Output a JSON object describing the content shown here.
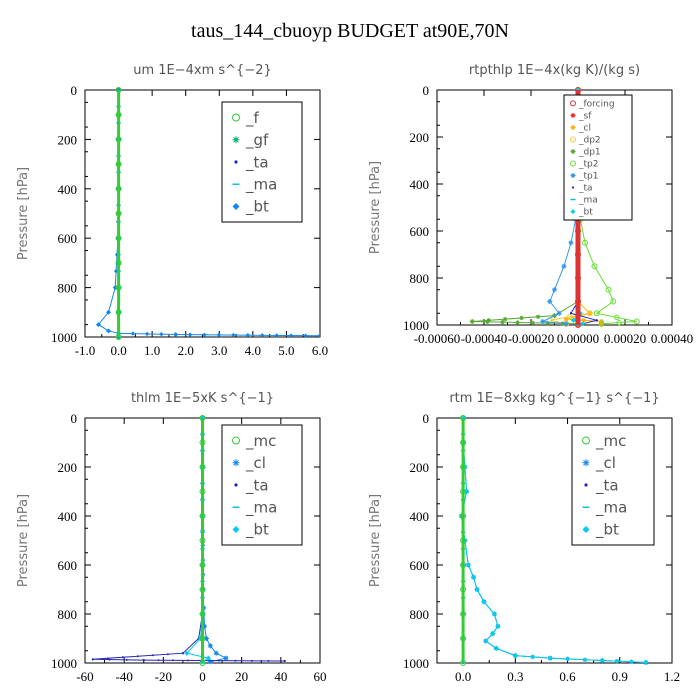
{
  "title": "taus_144_cbuoyp  BUDGET at90E,70N",
  "chart_data": [
    {
      "type": "line",
      "title": "um  1E−4xm s^{−2}",
      "ylabel": "Pressure [hPa]",
      "xlim": [
        -1.0,
        6.0
      ],
      "ylim": [
        1000,
        0
      ],
      "xticks": [
        -1.0,
        0.0,
        1.0,
        2.0,
        3.0,
        4.0,
        5.0,
        6.0
      ],
      "xtick_labels": [
        "-1.0",
        "0.0",
        "1.0",
        "2.0",
        "3.0",
        "4.0",
        "5.0",
        "6.0"
      ],
      "yticks": [
        0,
        200,
        400,
        600,
        800,
        1000
      ],
      "ytick_labels": [
        "0",
        "200",
        "400",
        "600",
        "800",
        "1000"
      ],
      "legend_position": "top-right",
      "legend_font": 15,
      "series": [
        {
          "name": "_f",
          "color": "#33cc33",
          "marker": "circle",
          "x": [
            0,
            0,
            0,
            0,
            0,
            0,
            0,
            0,
            0,
            0,
            0
          ],
          "y": [
            0,
            100,
            200,
            300,
            400,
            500,
            600,
            700,
            800,
            900,
            1000
          ]
        },
        {
          "name": "_gf",
          "color": "#00aa77",
          "marker": "star",
          "x": [
            0,
            0,
            0,
            0,
            0,
            0,
            0,
            0,
            0,
            0,
            0
          ],
          "y": [
            0,
            100,
            200,
            300,
            400,
            500,
            600,
            700,
            800,
            900,
            1000
          ]
        },
        {
          "name": "_ta",
          "color": "#2222bb",
          "marker": "dot",
          "x": [
            0,
            0,
            0,
            0,
            0,
            0,
            0,
            0
          ],
          "y": [
            0,
            200,
            400,
            600,
            800,
            950,
            985,
            1000
          ]
        },
        {
          "name": "_ma",
          "color": "#00bbdd",
          "marker": "dash",
          "x": [
            0,
            0,
            0,
            0,
            0,
            0,
            0
          ],
          "y": [
            0,
            200,
            400,
            600,
            800,
            900,
            1000
          ]
        },
        {
          "name": "_bt",
          "color": "#1188ee",
          "marker": "diamond",
          "x": [
            0,
            0,
            0,
            -0.02,
            -0.1,
            -0.3,
            -0.6,
            -0.3,
            0,
            1.7,
            6.0
          ],
          "y": [
            0,
            200,
            400,
            600,
            800,
            900,
            950,
            975,
            985,
            990,
            995
          ]
        }
      ]
    },
    {
      "type": "line",
      "title": "rtpthlp  1E−4x(kg K)/(kg s)",
      "ylabel": "Pressure [hPa]",
      "xlim": [
        -0.0006,
        0.0004
      ],
      "ylim": [
        1000,
        0
      ],
      "xticks": [
        -0.0006,
        -0.0004,
        -0.0002,
        0.0,
        0.0002,
        0.0004
      ],
      "xtick_labels": [
        "-0.00060",
        "-0.00040",
        "-0.00020",
        "0.00000",
        "0.00020",
        "0.00040"
      ],
      "yticks": [
        0,
        200,
        400,
        600,
        800,
        1000
      ],
      "ytick_labels": [
        "0",
        "200",
        "400",
        "600",
        "800",
        "1000"
      ],
      "legend_position": "top-right",
      "legend_font": 9,
      "series": [
        {
          "name": "_forcing",
          "color": "#dd3333",
          "marker": "circle",
          "x": [
            0,
            0,
            0,
            0,
            0,
            0,
            0,
            0,
            0,
            0,
            0
          ],
          "y": [
            0,
            100,
            200,
            300,
            400,
            500,
            600,
            700,
            800,
            900,
            1000
          ]
        },
        {
          "name": "_sf",
          "color": "#ee2222",
          "marker": "star",
          "x": [
            0,
            0,
            0,
            0,
            0,
            0,
            0,
            0,
            0,
            0,
            0
          ],
          "y": [
            0,
            100,
            200,
            300,
            400,
            500,
            600,
            700,
            800,
            900,
            1000
          ]
        },
        {
          "name": "_cl",
          "color": "#ffaa00",
          "marker": "star",
          "x": [
            0,
            0,
            0,
            0,
            0,
            0,
            5e-05,
            -5e-05,
            0.0001,
            0.0001
          ],
          "y": [
            0,
            200,
            400,
            600,
            800,
            900,
            950,
            975,
            985,
            995
          ]
        },
        {
          "name": "_dp2",
          "color": "#eecc33",
          "marker": "circle",
          "x": [
            0,
            0,
            0,
            0,
            0,
            0,
            5e-05,
            -0.00012,
            -5e-05
          ],
          "y": [
            0,
            200,
            400,
            600,
            800,
            900,
            950,
            980,
            995
          ]
        },
        {
          "name": "_dp1",
          "color": "#55aa33",
          "marker": "star",
          "x": [
            0,
            0,
            0,
            0,
            0,
            0,
            -0.0001,
            -0.00045,
            0
          ],
          "y": [
            0,
            200,
            400,
            600,
            800,
            900,
            960,
            985,
            995
          ]
        },
        {
          "name": "_tp2",
          "color": "#66dd33",
          "marker": "circle",
          "x": [
            0,
            0,
            0,
            1e-05,
            3e-05,
            7e-05,
            0.00013,
            0.00015,
            8e-05,
            0.00025,
            0.0001
          ],
          "y": [
            0,
            200,
            400,
            550,
            650,
            750,
            850,
            900,
            950,
            985,
            995
          ]
        },
        {
          "name": "_tp1",
          "color": "#3399ee",
          "marker": "star",
          "x": [
            0,
            0,
            0,
            -1e-05,
            -3e-05,
            -6e-05,
            -0.0001,
            -0.00012,
            -8e-05,
            -0.00015,
            -5e-05
          ],
          "y": [
            0,
            200,
            400,
            550,
            650,
            750,
            850,
            900,
            950,
            985,
            995
          ]
        },
        {
          "name": "_ta",
          "color": "#2222bb",
          "marker": "dot",
          "x": [
            0,
            0,
            0,
            0,
            0,
            0,
            -3e-05,
            8e-05,
            2e-05
          ],
          "y": [
            0,
            200,
            400,
            600,
            800,
            900,
            950,
            980,
            995
          ]
        },
        {
          "name": "_ma",
          "color": "#00bbdd",
          "marker": "dash",
          "x": [
            0,
            0,
            0,
            0,
            0,
            0,
            0,
            0
          ],
          "y": [
            0,
            200,
            400,
            600,
            800,
            900,
            950,
            1000
          ]
        },
        {
          "name": "_bt",
          "color": "#00ccee",
          "marker": "diamond",
          "x": [
            0,
            0,
            0,
            0,
            0,
            0,
            1e-05,
            -2e-05,
            2e-05
          ],
          "y": [
            0,
            200,
            400,
            600,
            800,
            900,
            950,
            980,
            995
          ]
        }
      ]
    },
    {
      "type": "line",
      "title": "thlm  1E−5xK  s^{−1}",
      "ylabel": "Pressure [hPa]",
      "xlim": [
        -60,
        60
      ],
      "ylim": [
        1000,
        0
      ],
      "xticks": [
        -60,
        -40,
        -20,
        0,
        20,
        40,
        60
      ],
      "xtick_labels": [
        "-60",
        "-40",
        "-20",
        "0",
        "20",
        "40",
        "60"
      ],
      "yticks": [
        0,
        200,
        400,
        600,
        800,
        1000
      ],
      "ytick_labels": [
        "0",
        "200",
        "400",
        "600",
        "800",
        "1000"
      ],
      "legend_position": "top-right",
      "legend_font": 15,
      "series": [
        {
          "name": "_mc",
          "color": "#33cc33",
          "marker": "circle",
          "x": [
            0,
            0,
            0,
            0,
            0,
            0,
            0,
            0,
            0,
            0,
            0
          ],
          "y": [
            0,
            100,
            200,
            300,
            400,
            500,
            600,
            700,
            800,
            900,
            1000
          ]
        },
        {
          "name": "_cl",
          "color": "#1188ee",
          "marker": "star",
          "x": [
            0,
            0,
            0,
            0.3,
            1,
            2,
            4,
            7,
            12,
            4
          ],
          "y": [
            0,
            200,
            400,
            700,
            850,
            900,
            930,
            960,
            980,
            995
          ]
        },
        {
          "name": "_ta",
          "color": "#2222bb",
          "marker": "dot",
          "x": [
            0,
            0,
            0,
            0,
            0,
            -2,
            -10,
            -56,
            -30,
            0,
            42
          ],
          "y": [
            0,
            200,
            400,
            600,
            800,
            900,
            960,
            985,
            988,
            990,
            992
          ]
        },
        {
          "name": "_ma",
          "color": "#00bbdd",
          "marker": "dash",
          "x": [
            0,
            0,
            0,
            0,
            0,
            0,
            0
          ],
          "y": [
            0,
            200,
            400,
            600,
            800,
            900,
            1000
          ]
        },
        {
          "name": "_bt",
          "color": "#00ccee",
          "marker": "diamond",
          "x": [
            0,
            0,
            0,
            0,
            0,
            -1,
            -8,
            3,
            0
          ],
          "y": [
            0,
            200,
            400,
            600,
            800,
            900,
            960,
            980,
            995
          ]
        }
      ]
    },
    {
      "type": "line",
      "title": "rtm  1E−8xkg kg^{−1} s^{−1}",
      "ylabel": "Pressure [hPa]",
      "xlim": [
        -0.15,
        1.2
      ],
      "ylim": [
        1000,
        0
      ],
      "xticks": [
        0.0,
        0.3,
        0.6,
        0.9,
        1.2
      ],
      "xtick_labels": [
        "0.0",
        "0.3",
        "0.6",
        "0.9",
        "1.2"
      ],
      "yticks": [
        0,
        200,
        400,
        600,
        800,
        1000
      ],
      "ytick_labels": [
        "0",
        "200",
        "400",
        "600",
        "800",
        "1000"
      ],
      "legend_position": "top-right",
      "legend_font": 15,
      "series": [
        {
          "name": "_mc",
          "color": "#33cc33",
          "marker": "circle",
          "x": [
            0,
            0,
            0,
            0,
            0,
            0,
            0,
            0,
            0,
            0,
            0
          ],
          "y": [
            0,
            100,
            200,
            300,
            400,
            500,
            600,
            700,
            800,
            900,
            1000
          ]
        },
        {
          "name": "_cl",
          "color": "#1188ee",
          "marker": "star",
          "x": [
            0,
            0,
            0.01,
            0.02,
            -0.01,
            0.01,
            0.03,
            0.06,
            0.08,
            0.12,
            0.18,
            0.2,
            0.17,
            0.13,
            0.19,
            0.3,
            0.5,
            0.8,
            1.05
          ],
          "y": [
            0,
            100,
            200,
            300,
            400,
            500,
            600,
            650,
            700,
            750,
            800,
            850,
            880,
            910,
            940,
            970,
            980,
            990,
            998
          ]
        },
        {
          "name": "_ta",
          "color": "#2222bb",
          "marker": "dot",
          "x": [
            0,
            0,
            0,
            0,
            0,
            0,
            0
          ],
          "y": [
            0,
            200,
            400,
            600,
            800,
            900,
            1000
          ]
        },
        {
          "name": "_ma",
          "color": "#00bbdd",
          "marker": "dash",
          "x": [
            0,
            0,
            0,
            0,
            0,
            0,
            0
          ],
          "y": [
            0,
            200,
            400,
            600,
            800,
            900,
            1000
          ]
        },
        {
          "name": "_bt",
          "color": "#00ccee",
          "marker": "diamond",
          "x": [
            0,
            0,
            0.01,
            0.02,
            -0.01,
            0.01,
            0.03,
            0.06,
            0.08,
            0.12,
            0.18,
            0.2,
            0.17,
            0.13,
            0.19,
            0.3,
            0.5,
            0.8,
            1.05
          ],
          "y": [
            0,
            100,
            200,
            300,
            400,
            500,
            600,
            650,
            700,
            750,
            800,
            850,
            880,
            910,
            940,
            970,
            980,
            990,
            998
          ]
        }
      ]
    }
  ]
}
